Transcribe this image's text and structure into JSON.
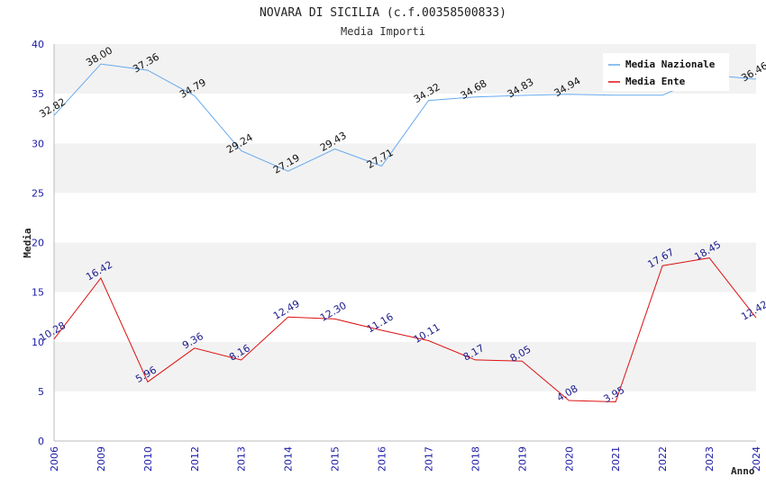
{
  "chart_data": {
    "type": "line",
    "title": "NOVARA DI SICILIA (c.f.00358500833)",
    "subtitle": "Media Importi",
    "xlabel": "Anno",
    "ylabel": "Media",
    "ylim": [
      0,
      40
    ],
    "yticks": [
      "0",
      "5",
      "10",
      "15",
      "20",
      "25",
      "30",
      "35",
      "40"
    ],
    "categories": [
      "2006",
      "2009",
      "2010",
      "2012",
      "2013",
      "2014",
      "2015",
      "2016",
      "2017",
      "2018",
      "2019",
      "2020",
      "2021",
      "2022",
      "2023",
      "2024"
    ],
    "series": [
      {
        "name": "Media Nazionale",
        "color": "#66aaee",
        "values": [
          32.82,
          38.0,
          37.36,
          34.79,
          29.24,
          27.19,
          29.43,
          27.71,
          34.32,
          34.68,
          34.83,
          34.94,
          34.85,
          34.85,
          36.9,
          36.46
        ],
        "labels": [
          "32.82",
          "38.00",
          "37.36",
          "34.79",
          "29.24",
          "27.19",
          "29.43",
          "27.71",
          "34.32",
          "34.68",
          "34.83",
          "34.94",
          "",
          "",
          "",
          "36.46"
        ]
      },
      {
        "name": "Media Ente",
        "color": "#dd1111",
        "values": [
          10.28,
          16.42,
          5.96,
          9.36,
          8.16,
          12.49,
          12.3,
          11.16,
          10.11,
          8.17,
          8.05,
          4.08,
          3.95,
          17.67,
          18.45,
          12.42
        ],
        "labels": [
          "10.28",
          "16.42",
          "5.96",
          "9.36",
          "8.16",
          "12.49",
          "12.30",
          "11.16",
          "10.11",
          "8.17",
          "8.05",
          "4.08",
          "3.95",
          "17.67",
          "18.45",
          "12.42"
        ]
      }
    ],
    "legend": "top-right",
    "grid": true
  }
}
